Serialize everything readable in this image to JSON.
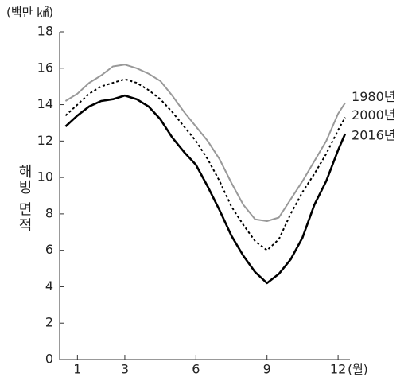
{
  "chart_data": {
    "type": "line",
    "y_unit": "(백만 ㎢)",
    "x_unit": "(월)",
    "y_label": "해빙 면적",
    "x": [
      0.5,
      1,
      1.5,
      2,
      2.5,
      3,
      3.5,
      4,
      4.5,
      5,
      5.5,
      6,
      6.5,
      7,
      7.5,
      8,
      8.5,
      9,
      9.5,
      10,
      10.5,
      11,
      11.5,
      12,
      12.3
    ],
    "series": [
      {
        "name": "1980년",
        "color": "#999999",
        "style": "solid",
        "values": [
          14.2,
          14.6,
          15.2,
          15.6,
          16.1,
          16.2,
          16.0,
          15.7,
          15.3,
          14.5,
          13.6,
          12.8,
          12.0,
          11.0,
          9.7,
          8.5,
          7.7,
          7.6,
          7.8,
          8.8,
          9.8,
          10.9,
          12.0,
          13.5,
          14.1
        ]
      },
      {
        "name": "2000년",
        "color": "#000000",
        "style": "dotted",
        "values": [
          13.4,
          14.0,
          14.6,
          15.0,
          15.2,
          15.4,
          15.2,
          14.8,
          14.3,
          13.6,
          12.8,
          12.0,
          11.0,
          9.8,
          8.4,
          7.4,
          6.5,
          6.0,
          6.6,
          8.0,
          9.2,
          10.2,
          11.3,
          12.6,
          13.3
        ]
      },
      {
        "name": "2016년",
        "color": "#000000",
        "style": "solid",
        "values": [
          12.8,
          13.4,
          13.9,
          14.2,
          14.3,
          14.5,
          14.3,
          13.9,
          13.2,
          12.2,
          11.4,
          10.7,
          9.5,
          8.2,
          6.8,
          5.7,
          4.8,
          4.2,
          4.7,
          5.5,
          6.7,
          8.5,
          9.8,
          11.5,
          12.4
        ]
      }
    ],
    "xlim": [
      0.25,
      12.5
    ],
    "xticks": [
      1,
      3,
      6,
      9,
      12
    ],
    "ylim": [
      0,
      18
    ],
    "yticks": [
      0,
      2,
      4,
      6,
      8,
      10,
      12,
      14,
      16,
      18
    ],
    "grid": false
  }
}
